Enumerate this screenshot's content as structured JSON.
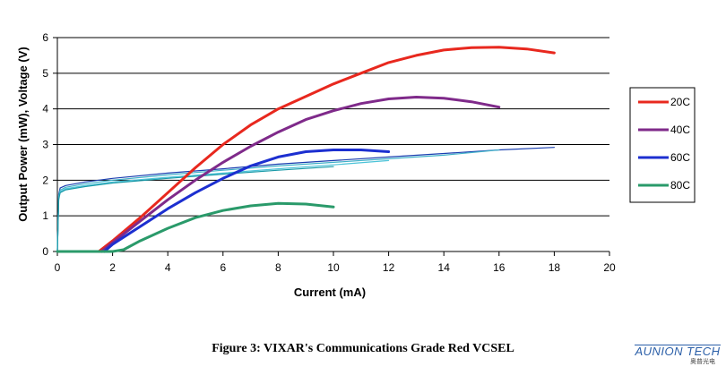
{
  "chart_data": {
    "type": "line",
    "title": "",
    "xlabel": "Current (mA)",
    "ylabel": "Output Power (mW), Voltage (V)",
    "xlim": [
      0,
      20
    ],
    "ylim": [
      0,
      6
    ],
    "xticks": [
      "0",
      "2",
      "4",
      "6",
      "8",
      "10",
      "12",
      "14",
      "16",
      "18",
      "20"
    ],
    "yticks": [
      "0",
      "1",
      "2",
      "3",
      "4",
      "5",
      "6"
    ],
    "grid": "horizontal",
    "legend_position": "right",
    "series": [
      {
        "name": "20C",
        "role": "power",
        "color": "#e8281e",
        "x": [
          1.5,
          2,
          3,
          4,
          5,
          6,
          7,
          8,
          9,
          10,
          11,
          12,
          13,
          14,
          15,
          16,
          17,
          18
        ],
        "y": [
          0,
          0.3,
          0.95,
          1.65,
          2.35,
          3.0,
          3.55,
          4.0,
          4.35,
          4.7,
          5.0,
          5.3,
          5.5,
          5.65,
          5.72,
          5.73,
          5.68,
          5.57
        ]
      },
      {
        "name": "40C",
        "role": "power",
        "color": "#7f2a8a",
        "x": [
          1.6,
          2,
          3,
          4,
          5,
          6,
          7,
          8,
          9,
          10,
          11,
          12,
          13,
          14,
          15,
          16
        ],
        "y": [
          0,
          0.25,
          0.85,
          1.45,
          2.0,
          2.5,
          2.95,
          3.35,
          3.7,
          3.95,
          4.15,
          4.28,
          4.33,
          4.3,
          4.2,
          4.05
        ]
      },
      {
        "name": "60C",
        "role": "power",
        "color": "#1c2fd0",
        "x": [
          1.7,
          2,
          3,
          4,
          5,
          6,
          7,
          8,
          9,
          10,
          11,
          12
        ],
        "y": [
          0,
          0.2,
          0.7,
          1.2,
          1.65,
          2.05,
          2.4,
          2.65,
          2.8,
          2.85,
          2.85,
          2.8
        ]
      },
      {
        "name": "80C",
        "role": "power",
        "color": "#2a9a6a",
        "x": [
          0,
          2,
          2.4,
          3,
          4,
          5,
          6,
          7,
          8,
          9,
          10
        ],
        "y": [
          0,
          0,
          0.05,
          0.3,
          0.65,
          0.95,
          1.15,
          1.28,
          1.35,
          1.33,
          1.25
        ]
      },
      {
        "name": "",
        "role": "voltage",
        "color": "#1a3fb0",
        "x": [
          0,
          0.05,
          0.1,
          0.3,
          1,
          2,
          4,
          6,
          8,
          10,
          12,
          14,
          16,
          18
        ],
        "y": [
          0,
          1.6,
          1.78,
          1.85,
          1.95,
          2.05,
          2.2,
          2.32,
          2.45,
          2.55,
          2.65,
          2.75,
          2.85,
          2.92
        ]
      },
      {
        "name": "",
        "role": "voltage",
        "color": "#3fb0c8",
        "x": [
          0,
          0.05,
          0.1,
          0.3,
          1,
          2,
          4,
          6,
          8,
          10,
          12,
          14,
          16
        ],
        "y": [
          0,
          1.55,
          1.72,
          1.8,
          1.9,
          2.0,
          2.15,
          2.28,
          2.4,
          2.5,
          2.6,
          2.7,
          2.85
        ]
      },
      {
        "name": "",
        "role": "voltage",
        "color": "#4cc3d8",
        "x": [
          0,
          0.05,
          0.1,
          0.3,
          1,
          2,
          4,
          6,
          8,
          10,
          12
        ],
        "y": [
          0,
          1.5,
          1.68,
          1.76,
          1.85,
          1.95,
          2.08,
          2.2,
          2.32,
          2.43,
          2.55
        ]
      },
      {
        "name": "",
        "role": "voltage",
        "color": "#1a9aa8",
        "x": [
          0,
          0.05,
          0.1,
          0.3,
          1,
          2,
          4,
          6,
          8,
          10
        ],
        "y": [
          0,
          1.45,
          1.65,
          1.73,
          1.82,
          1.92,
          2.05,
          2.17,
          2.28,
          2.38
        ]
      }
    ]
  },
  "legend": [
    {
      "label": "20C",
      "color": "#e8281e"
    },
    {
      "label": "40C",
      "color": "#7f2a8a"
    },
    {
      "label": "60C",
      "color": "#1c2fd0"
    },
    {
      "label": "80C",
      "color": "#2a9a6a"
    }
  ],
  "caption": "Figure 3: VIXAR's Communications Grade Red VCSEL",
  "logo": {
    "text": "AUNION TECH",
    "subtext": "奥普光电"
  }
}
